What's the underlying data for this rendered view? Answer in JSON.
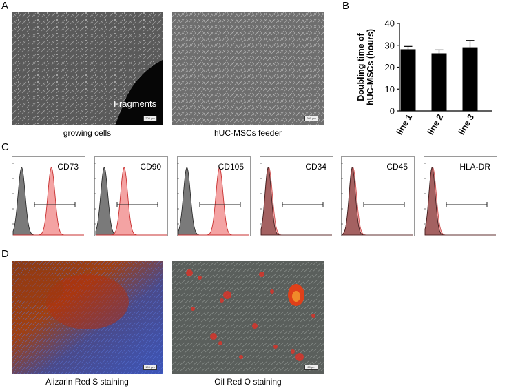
{
  "panels": {
    "a": {
      "letter": "A",
      "images": [
        {
          "caption": "growing cells",
          "overlay_label": "Fragments",
          "scale_text": "200 µm"
        },
        {
          "caption": "hUC-MSCs feeder",
          "scale_text": "200 µm"
        }
      ]
    },
    "b": {
      "letter": "B"
    },
    "c": {
      "letter": "C",
      "markers": [
        {
          "label": "CD73",
          "positive": true,
          "mode": 0.54
        },
        {
          "label": "CD90",
          "positive": true,
          "mode": 0.4
        },
        {
          "label": "CD105",
          "positive": true,
          "mode": 0.58
        },
        {
          "label": "CD34",
          "positive": false,
          "mode": 0.1
        },
        {
          "label": "CD45",
          "positive": false,
          "mode": 0.14
        },
        {
          "label": "HLA-DR",
          "positive": false,
          "mode": 0.1
        }
      ]
    },
    "d": {
      "letter": "D",
      "images": [
        {
          "caption": "Alizarin Red S staining",
          "scale_text": "100 µm"
        },
        {
          "caption": "Oil Red O staining",
          "scale_text": "20 µm"
        }
      ]
    }
  },
  "chart_data": {
    "type": "bar",
    "categories": [
      "line 1",
      "line 2",
      "line 3"
    ],
    "values": [
      28.2,
      26.3,
      29.1
    ],
    "errors": [
      1.3,
      1.6,
      3.1
    ],
    "ylabel": "Doubling time of\nhUC-MSCs (hours)",
    "ylim": [
      0,
      40
    ],
    "yticks": [
      0,
      10,
      20,
      30,
      40
    ],
    "bar_color": "#000000"
  }
}
